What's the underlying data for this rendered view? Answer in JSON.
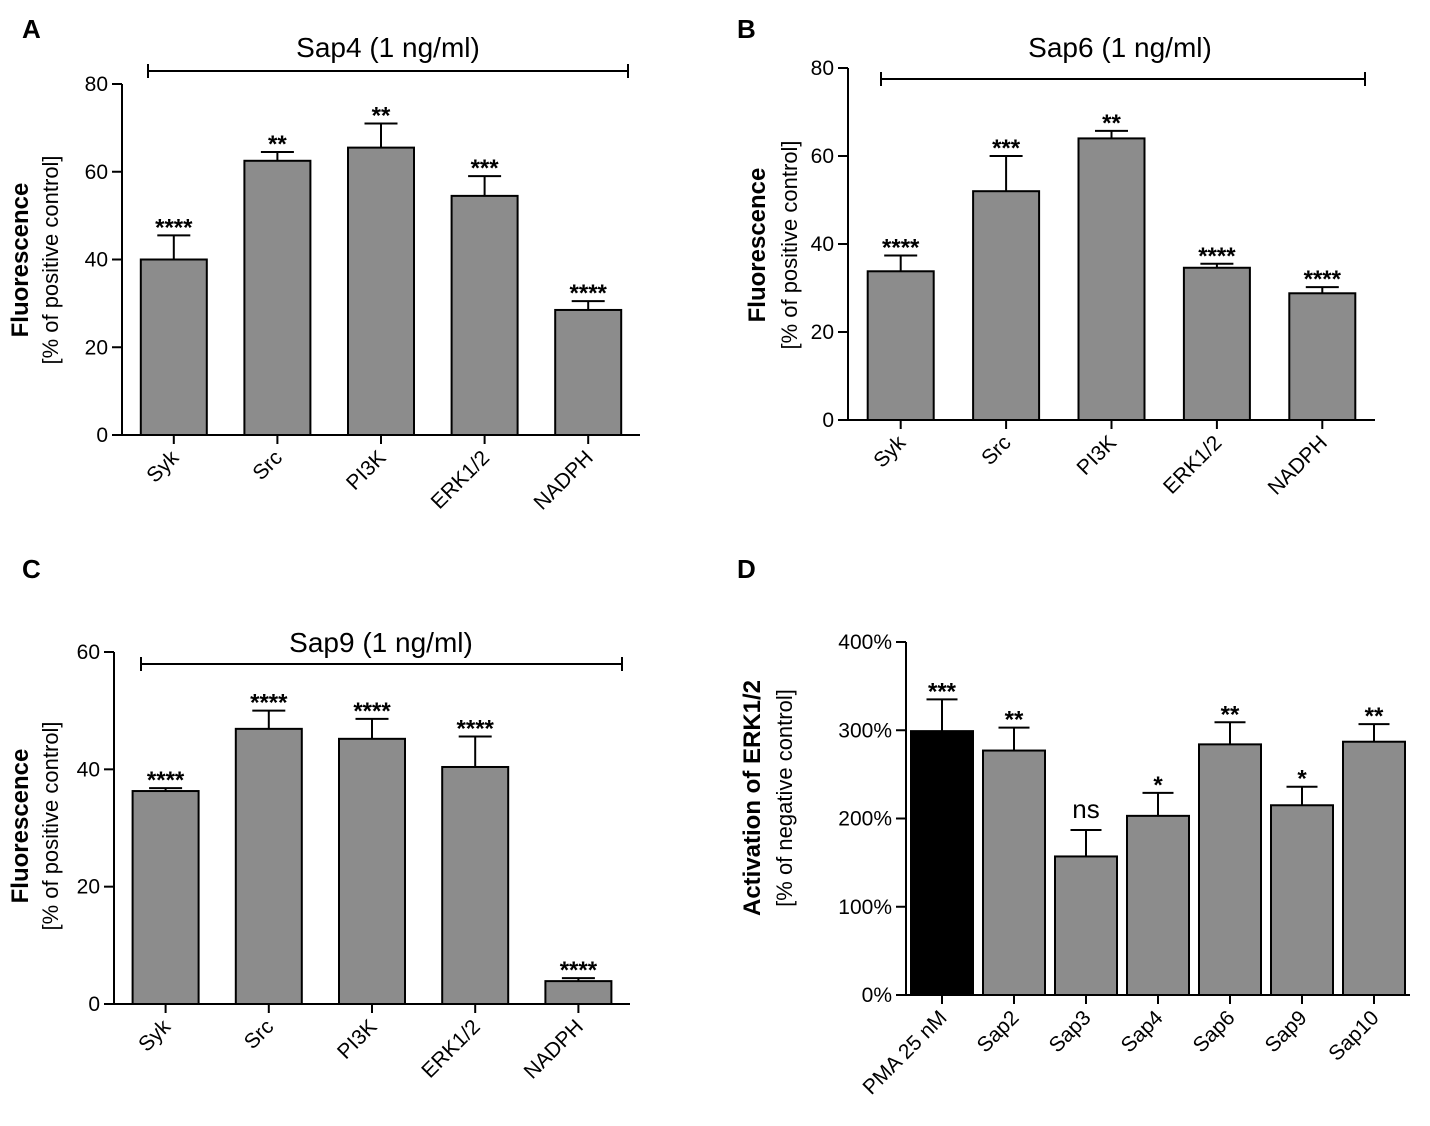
{
  "chart_data": [
    {
      "panel": "A",
      "type": "bar",
      "title": "Sap4 (1 ng/ml)",
      "ylabel": "Fluorescence",
      "ylabel_sub": "[% of positive control]",
      "ylim": [
        0,
        80
      ],
      "yticks": [
        0,
        20,
        40,
        60,
        80
      ],
      "categories": [
        "Syk",
        "Src",
        "PI3K",
        "ERK1/2",
        "NADPH"
      ],
      "values": [
        40,
        62.5,
        65.5,
        54.5,
        28.5
      ],
      "errors": [
        5.5,
        2,
        5.5,
        4.5,
        2
      ],
      "significance": [
        "****",
        "**",
        "**",
        "***",
        "****"
      ],
      "bar_colors": [
        "#8c8c8c",
        "#8c8c8c",
        "#8c8c8c",
        "#8c8c8c",
        "#8c8c8c"
      ]
    },
    {
      "panel": "B",
      "type": "bar",
      "title": "Sap6 (1 ng/ml)",
      "ylabel": "Fluorescence",
      "ylabel_sub": "[% of positive control]",
      "ylim": [
        0,
        80
      ],
      "yticks": [
        0,
        20,
        40,
        60,
        80
      ],
      "categories": [
        "Syk",
        "Src",
        "PI3K",
        "ERK1/2",
        "NADPH"
      ],
      "values": [
        33.8,
        52,
        64,
        34.6,
        28.8
      ],
      "errors": [
        3.6,
        8,
        1.7,
        0.9,
        1.4
      ],
      "significance": [
        "****",
        "***",
        "**",
        "****",
        "****"
      ],
      "bar_colors": [
        "#8c8c8c",
        "#8c8c8c",
        "#8c8c8c",
        "#8c8c8c",
        "#8c8c8c"
      ]
    },
    {
      "panel": "C",
      "type": "bar",
      "title": "Sap9 (1 ng/ml)",
      "ylabel": "Fluorescence",
      "ylabel_sub": "[% of positive control]",
      "ylim": [
        0,
        60
      ],
      "yticks": [
        0,
        20,
        40,
        60
      ],
      "categories": [
        "Syk",
        "Src",
        "PI3K",
        "ERK1/2",
        "NADPH"
      ],
      "values": [
        36.3,
        46.9,
        45.2,
        40.4,
        3.9
      ],
      "errors": [
        0.5,
        3.1,
        3.4,
        5.2,
        0.5
      ],
      "significance": [
        "****",
        "****",
        "****",
        "****",
        "****"
      ],
      "bar_colors": [
        "#8c8c8c",
        "#8c8c8c",
        "#8c8c8c",
        "#8c8c8c",
        "#8c8c8c"
      ]
    },
    {
      "panel": "D",
      "type": "bar",
      "title": "",
      "ylabel": "Activation of ERK1/2",
      "ylabel_sub": "[% of negative control]",
      "ylim": [
        0,
        400
      ],
      "yticks": [
        0,
        100,
        200,
        300,
        400
      ],
      "ytick_labels": [
        "0%",
        "100%",
        "200%",
        "300%",
        "400%"
      ],
      "categories": [
        "PMA 25 nM",
        "Sap2",
        "Sap3",
        "Sap4",
        "Sap6",
        "Sap9",
        "Sap10"
      ],
      "values": [
        299,
        277,
        157,
        203,
        284,
        215,
        287
      ],
      "errors": [
        36,
        26,
        30,
        26,
        25,
        21,
        20
      ],
      "significance": [
        "***",
        "**",
        "ns",
        "*",
        "**",
        "*",
        "**"
      ],
      "bar_colors": [
        "#000000",
        "#8c8c8c",
        "#8c8c8c",
        "#8c8c8c",
        "#8c8c8c",
        "#8c8c8c",
        "#8c8c8c"
      ]
    }
  ],
  "panels": [
    {
      "letter": "A"
    },
    {
      "letter": "B"
    },
    {
      "letter": "C"
    },
    {
      "letter": "D"
    }
  ]
}
